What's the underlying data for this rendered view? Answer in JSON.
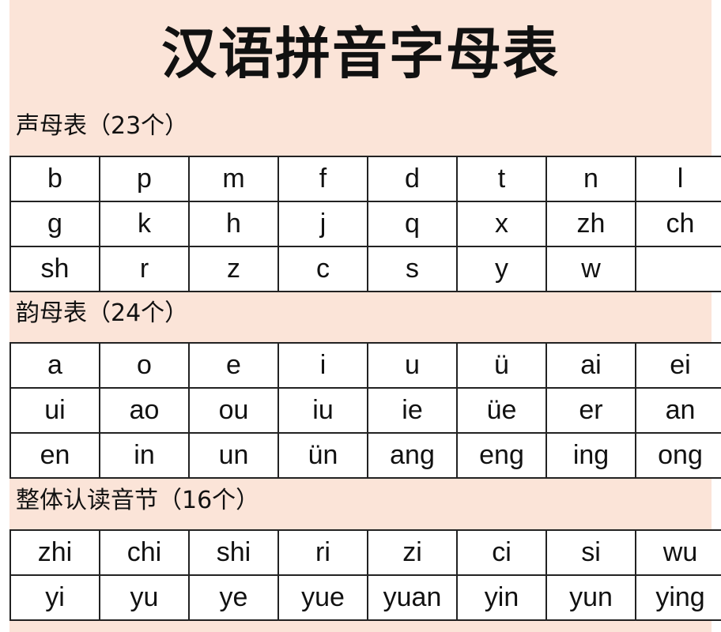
{
  "title": "汉语拼音字母表",
  "sections": [
    {
      "heading": "声母表（23个）",
      "rows": [
        [
          "b",
          "p",
          "m",
          "f",
          "d",
          "t",
          "n",
          "l"
        ],
        [
          "g",
          "k",
          "h",
          "j",
          "q",
          "x",
          "zh",
          "ch"
        ],
        [
          "sh",
          "r",
          "z",
          "c",
          "s",
          "y",
          "w",
          ""
        ]
      ]
    },
    {
      "heading": "韵母表（24个）",
      "rows": [
        [
          "a",
          "o",
          "e",
          "i",
          "u",
          "ü",
          "ai",
          "ei"
        ],
        [
          "ui",
          "ao",
          "ou",
          "iu",
          "ie",
          "üe",
          "er",
          "an"
        ],
        [
          "en",
          "in",
          "un",
          "ün",
          "ang",
          "eng",
          "ing",
          "ong"
        ]
      ]
    },
    {
      "heading": "整体认读音节（16个）",
      "rows": [
        [
          "zhi",
          "chi",
          "shi",
          "ri",
          "zi",
          "ci",
          "si",
          "wu"
        ],
        [
          "yi",
          "yu",
          "ye",
          "yue",
          "yuan",
          "yin",
          "yun",
          "ying"
        ]
      ]
    }
  ],
  "colors": {
    "background": "#fbe4d8",
    "border": "#222222"
  }
}
